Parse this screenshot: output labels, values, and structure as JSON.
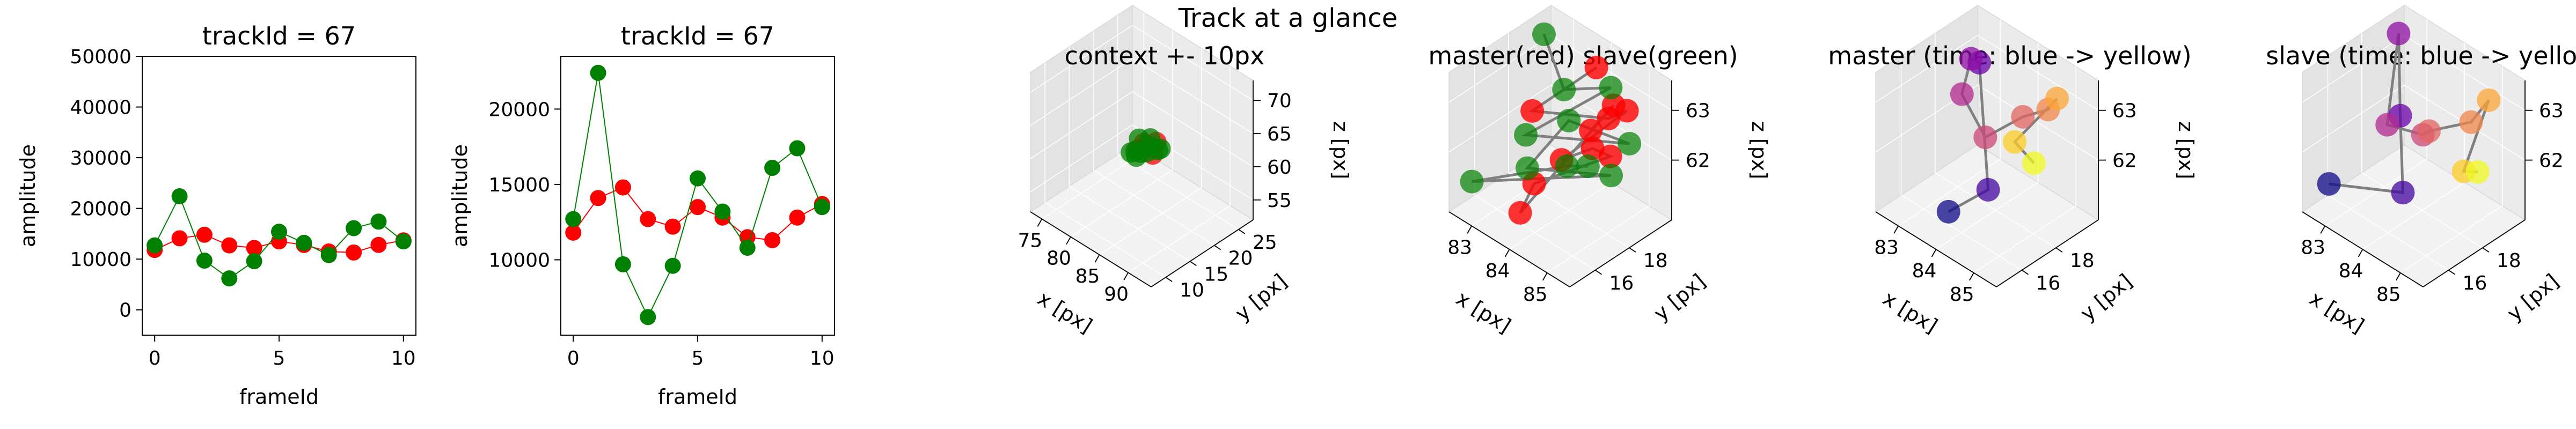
{
  "suptitle": "Track at a glance",
  "colors": {
    "master": "#ff0000",
    "slave": "#008000",
    "connector": "#808080",
    "pane": "#f2f2f2"
  },
  "chart_data": [
    {
      "type": "line",
      "title": "trackId = 67",
      "xlabel": "frameId",
      "ylabel": "amplitude",
      "xlim": [
        -0.5,
        10.5
      ],
      "ylim": [
        -5000,
        50000
      ],
      "xticks": [
        0,
        5,
        10
      ],
      "yticks": [
        0,
        10000,
        20000,
        30000,
        40000,
        50000
      ],
      "x": [
        0,
        1,
        2,
        3,
        4,
        5,
        6,
        7,
        8,
        9,
        10
      ],
      "series": [
        {
          "color": "#ff0000",
          "values": [
            11800,
            14100,
            14800,
            12700,
            12200,
            13500,
            12800,
            11500,
            11300,
            12800,
            13700
          ]
        },
        {
          "color": "#008000",
          "values": [
            12700,
            22400,
            9700,
            6200,
            9600,
            15400,
            13200,
            10800,
            16100,
            17400,
            13500
          ]
        }
      ]
    },
    {
      "type": "line",
      "title": "trackId = 67",
      "xlabel": "frameId",
      "ylabel": "amplitude",
      "xlim": [
        -0.5,
        10.5
      ],
      "ylim": [
        5000,
        23500
      ],
      "xticks": [
        0,
        5,
        10
      ],
      "yticks": [
        10000,
        15000,
        20000
      ],
      "x": [
        0,
        1,
        2,
        3,
        4,
        5,
        6,
        7,
        8,
        9,
        10
      ],
      "series": [
        {
          "color": "#ff0000",
          "values": [
            11800,
            14100,
            14800,
            12700,
            12200,
            13500,
            12800,
            11500,
            11300,
            12800,
            13700
          ]
        },
        {
          "color": "#008000",
          "values": [
            12700,
            22400,
            9700,
            6200,
            9600,
            15400,
            13200,
            10800,
            16100,
            17400,
            13500
          ]
        }
      ]
    },
    {
      "type": "scatter",
      "title": "context +- 10px",
      "xlabel": "x [px]",
      "ylabel": "y [px]",
      "zlabel": "z [px]",
      "xlim": [
        73,
        94
      ],
      "ylim": [
        7,
        28
      ],
      "zlim": [
        52,
        73
      ],
      "xticks": [
        75,
        80,
        85,
        90
      ],
      "yticks": [
        10,
        15,
        20,
        25
      ],
      "zticks": [
        55,
        60,
        65,
        70
      ],
      "points": [
        {
          "x": 83.0,
          "y": 18.5,
          "z": 62.2,
          "color": "#ff0000"
        },
        {
          "x": 84.2,
          "y": 17.2,
          "z": 62.8,
          "color": "#ff0000"
        },
        {
          "x": 85.0,
          "y": 18.0,
          "z": 61.8,
          "color": "#ff0000"
        },
        {
          "x": 83.6,
          "y": 16.5,
          "z": 62.5,
          "color": "#ff0000"
        },
        {
          "x": 84.6,
          "y": 19.2,
          "z": 62.9,
          "color": "#ff0000"
        },
        {
          "x": 82.8,
          "y": 17.0,
          "z": 61.6,
          "color": "#008000"
        },
        {
          "x": 83.3,
          "y": 19.5,
          "z": 62.6,
          "color": "#008000"
        },
        {
          "x": 84.0,
          "y": 15.8,
          "z": 62.0,
          "color": "#008000"
        },
        {
          "x": 84.8,
          "y": 17.8,
          "z": 63.0,
          "color": "#008000"
        },
        {
          "x": 85.2,
          "y": 18.8,
          "z": 62.2,
          "color": "#008000"
        },
        {
          "x": 83.8,
          "y": 18.2,
          "z": 61.4,
          "color": "#008000"
        },
        {
          "x": 82.6,
          "y": 18.0,
          "z": 62.9,
          "color": "#008000"
        },
        {
          "x": 84.4,
          "y": 16.2,
          "z": 62.6,
          "color": "#008000"
        },
        {
          "x": 85.0,
          "y": 19.6,
          "z": 61.9,
          "color": "#008000"
        },
        {
          "x": 83.2,
          "y": 15.6,
          "z": 62.3,
          "color": "#008000"
        }
      ]
    },
    {
      "type": "scatter",
      "title": "master(red) slave(green)",
      "xlabel": "x [px]",
      "ylabel": "y [px]",
      "zlabel": "z [px]",
      "xlim": [
        82.4,
        85.6
      ],
      "ylim": [
        14.5,
        20.5
      ],
      "zlim": [
        60.8,
        63.6
      ],
      "xticks": [
        83,
        84,
        85
      ],
      "yticks": [
        16,
        18
      ],
      "zticks": [
        62,
        63
      ],
      "master_track": [
        {
          "x": 84.1,
          "y": 19.4,
          "z": 63.4
        },
        {
          "x": 83.3,
          "y": 17.4,
          "z": 62.6
        },
        {
          "x": 84.6,
          "y": 19.0,
          "z": 62.7
        },
        {
          "x": 85.0,
          "y": 19.2,
          "z": 63.0
        },
        {
          "x": 84.3,
          "y": 16.9,
          "z": 62.2
        },
        {
          "x": 84.9,
          "y": 17.4,
          "z": 62.6
        },
        {
          "x": 85.1,
          "y": 18.0,
          "z": 62.4
        },
        {
          "x": 83.8,
          "y": 16.4,
          "z": 61.6
        },
        {
          "x": 83.7,
          "y": 15.8,
          "z": 61.1
        },
        {
          "x": 84.6,
          "y": 19.3,
          "z": 62.9
        },
        {
          "x": 84.4,
          "y": 18.4,
          "z": 62.5
        }
      ],
      "slave_track": [
        {
          "x": 82.8,
          "y": 19.2,
          "z": 63.5
        },
        {
          "x": 83.6,
          "y": 18.6,
          "z": 62.9
        },
        {
          "x": 84.3,
          "y": 19.8,
          "z": 63.0
        },
        {
          "x": 83.4,
          "y": 16.8,
          "z": 62.3
        },
        {
          "x": 85.2,
          "y": 18.9,
          "z": 62.5
        },
        {
          "x": 84.0,
          "y": 18.0,
          "z": 62.6
        },
        {
          "x": 83.8,
          "y": 16.0,
          "z": 62.0
        },
        {
          "x": 85.3,
          "y": 17.6,
          "z": 62.2
        },
        {
          "x": 82.6,
          "y": 15.4,
          "z": 61.3
        },
        {
          "x": 84.4,
          "y": 17.0,
          "z": 62.1
        },
        {
          "x": 85.0,
          "y": 16.9,
          "z": 62.4
        }
      ]
    },
    {
      "type": "scatter",
      "title": "master (time: blue -> yellow)",
      "xlabel": "x [px]",
      "ylabel": "y [px]",
      "zlabel": "z [px]",
      "xlim": [
        82.4,
        85.6
      ],
      "ylim": [
        14.5,
        20.5
      ],
      "zlim": [
        60.8,
        63.6
      ],
      "xticks": [
        83,
        84,
        85
      ],
      "yticks": [
        16,
        18
      ],
      "zticks": [
        62,
        63
      ],
      "colormap": "plasma",
      "points": [
        {
          "x": 83.7,
          "y": 15.9,
          "z": 61.1,
          "color": "#0d0887"
        },
        {
          "x": 84.3,
          "y": 16.9,
          "z": 61.6,
          "color": "#41049d"
        },
        {
          "x": 83.3,
          "y": 18.6,
          "z": 63.3,
          "color": "#6a00a8"
        },
        {
          "x": 82.9,
          "y": 19.0,
          "z": 63.1,
          "color": "#8f0da4"
        },
        {
          "x": 83.2,
          "y": 17.8,
          "z": 62.8,
          "color": "#b12a90"
        },
        {
          "x": 84.0,
          "y": 17.4,
          "z": 62.4,
          "color": "#cc4778"
        },
        {
          "x": 84.5,
          "y": 18.5,
          "z": 62.8,
          "color": "#e16462"
        },
        {
          "x": 84.9,
          "y": 19.1,
          "z": 63.0,
          "color": "#f2844b"
        },
        {
          "x": 85.0,
          "y": 19.4,
          "z": 63.2,
          "color": "#fca636"
        },
        {
          "x": 84.6,
          "y": 17.8,
          "z": 62.5,
          "color": "#fcce25"
        },
        {
          "x": 85.2,
          "y": 17.6,
          "z": 62.4,
          "color": "#f0f921"
        }
      ]
    },
    {
      "type": "scatter",
      "title": "slave (time: blue -> yellow)",
      "xlabel": "x [px]",
      "ylabel": "y [px]",
      "zlabel": "z [px]",
      "xlim": [
        82.4,
        85.6
      ],
      "ylim": [
        14.5,
        20.5
      ],
      "zlim": [
        60.8,
        63.6
      ],
      "xticks": [
        83,
        84,
        85
      ],
      "yticks": [
        16,
        18
      ],
      "zticks": [
        62,
        63
      ],
      "colormap": "plasma",
      "points": [
        {
          "x": 82.7,
          "y": 15.4,
          "z": 61.3,
          "color": "#0d0887"
        },
        {
          "x": 84.3,
          "y": 16.2,
          "z": 61.7,
          "color": "#41049d"
        },
        {
          "x": 83.6,
          "y": 17.6,
          "z": 62.6,
          "color": "#6a00a8"
        },
        {
          "x": 82.7,
          "y": 19.5,
          "z": 63.4,
          "color": "#8f0da4"
        },
        {
          "x": 83.3,
          "y": 17.5,
          "z": 62.3,
          "color": "#b12a90"
        },
        {
          "x": 84.2,
          "y": 17.6,
          "z": 62.5,
          "color": "#cc4778"
        },
        {
          "x": 84.0,
          "y": 18.4,
          "z": 62.3,
          "color": "#e16462"
        },
        {
          "x": 84.8,
          "y": 19.1,
          "z": 62.7,
          "color": "#f2844b"
        },
        {
          "x": 85.0,
          "y": 19.7,
          "z": 63.1,
          "color": "#fca636"
        },
        {
          "x": 85.1,
          "y": 18.0,
          "z": 62.1,
          "color": "#fcce25"
        },
        {
          "x": 85.2,
          "y": 18.6,
          "z": 62.0,
          "color": "#f0f921"
        }
      ]
    }
  ]
}
